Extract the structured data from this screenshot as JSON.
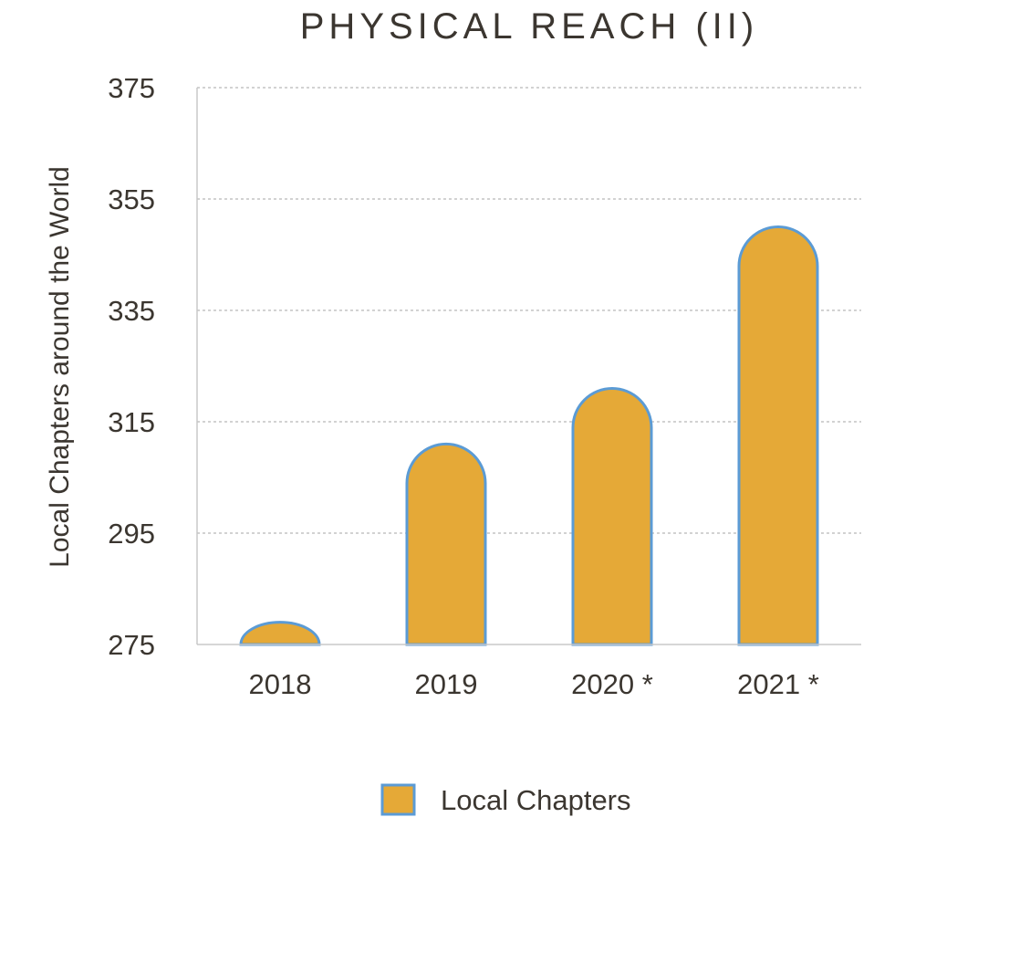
{
  "chart_data": {
    "type": "bar",
    "title": "PHYSICAL REACH (II)",
    "xlabel": "",
    "ylabel": "Local Chapters around the World",
    "categories": [
      "2018",
      "2019",
      "2020 *",
      "2021 *"
    ],
    "series": [
      {
        "name": "Local Chapters",
        "values": [
          279,
          311,
          321,
          350
        ]
      }
    ],
    "ylim": [
      275,
      375
    ],
    "yticks": [
      "375",
      "355",
      "335",
      "315",
      "295",
      "275"
    ],
    "grid": true,
    "legend_position": "bottom",
    "colors": {
      "bar_fill": "#e5a937",
      "bar_stroke": "#5b9bd5",
      "grid": "#b8b8b8",
      "axis": "#c8c8c8",
      "text": "#3b3630"
    }
  }
}
